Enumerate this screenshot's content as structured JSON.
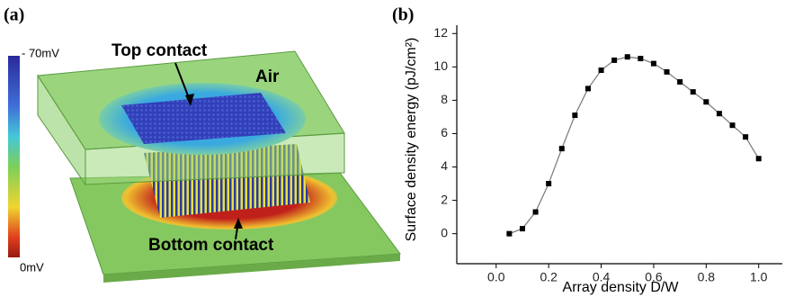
{
  "panel_a": {
    "label": "(a)",
    "colorbar": {
      "max_label": "- 70mV",
      "min_label": "0mV"
    },
    "annotations": {
      "top": "Top contact",
      "air": "Air",
      "bottom": "Bottom contact"
    }
  },
  "chart_data": {
    "type": "line",
    "panel_label": "(b)",
    "x_label": "Array density D/W",
    "y_label": "Surface density energy (pJ/cm²)",
    "x": [
      0.05,
      0.1,
      0.15,
      0.2,
      0.25,
      0.3,
      0.35,
      0.4,
      0.45,
      0.5,
      0.55,
      0.6,
      0.65,
      0.7,
      0.75,
      0.8,
      0.85,
      0.9,
      0.95,
      1.0
    ],
    "values": [
      0.0,
      0.3,
      1.3,
      3.0,
      5.1,
      7.1,
      8.7,
      9.8,
      10.4,
      10.6,
      10.5,
      10.2,
      9.7,
      9.1,
      8.5,
      7.9,
      7.2,
      6.5,
      5.8,
      4.5
    ],
    "color": "#000000",
    "line_color": "#808080",
    "xlim": [
      -0.15,
      1.09
    ],
    "ylim": [
      -1.8,
      12.5
    ],
    "xticks": [
      {
        "value": 0,
        "label": "0.0"
      },
      0.2,
      0.4,
      0.6,
      0.8,
      {
        "value": 1,
        "label": "1.0"
      }
    ],
    "yticks": [
      0,
      2,
      4,
      6,
      8,
      10,
      12
    ]
  }
}
